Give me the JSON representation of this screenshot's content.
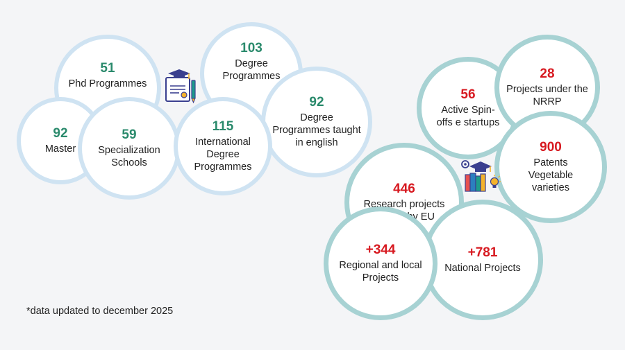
{
  "colors": {
    "background": "#f4f5f7",
    "education_border": "#cfe3f2",
    "education_number": "#2a8a6c",
    "research_border": "#a7d2d3",
    "research_number": "#d71920"
  },
  "icons": {
    "education": "diploma-graduation-cap-icon",
    "research": "books-graduation-cap-lightbulb-icon"
  },
  "education": {
    "phd": {
      "value": "51",
      "label": "Phd Programmes"
    },
    "degree": {
      "value": "103",
      "label": "Degree Programmes"
    },
    "english": {
      "value": "92",
      "label": "Degree Programmes taught in english"
    },
    "master": {
      "value": "92",
      "label": "Master"
    },
    "specialization": {
      "value": "59",
      "label": "Specialization Schools"
    },
    "international": {
      "value": "115",
      "label": "International Degree Programmes"
    }
  },
  "research": {
    "spinoffs": {
      "value": "56",
      "label": "Active Spin-offs e startups"
    },
    "nrrp": {
      "value": "28",
      "label": "Projects under the NRRP"
    },
    "patents": {
      "value": "900",
      "label": "Patents Vegetable varieties"
    },
    "eu": {
      "value": "446",
      "label": "Research projects funded by EU"
    },
    "national": {
      "value": "+781",
      "label": "National Projects"
    },
    "regional": {
      "value": "+344",
      "label": "Regional and local Projects"
    }
  },
  "footnote": "*data updated to december 2025"
}
